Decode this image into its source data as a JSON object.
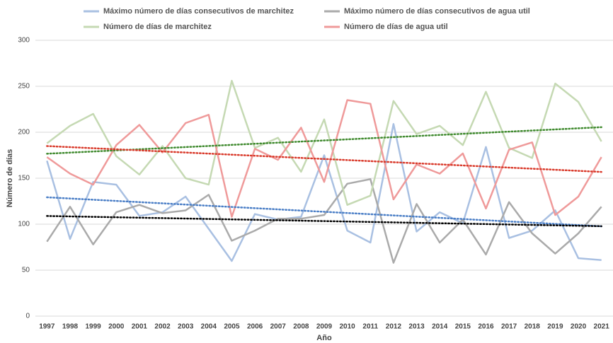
{
  "chart_data": {
    "type": "line",
    "x_label": "Año",
    "y_label": "Número de días",
    "categories": [
      "1997",
      "1998",
      "1999",
      "2000",
      "2001",
      "2002",
      "2003",
      "2004",
      "2005",
      "2006",
      "2007",
      "2008",
      "2009",
      "2010",
      "2011",
      "2012",
      "2013",
      "2014",
      "2015",
      "2016",
      "2017",
      "2018",
      "2019",
      "2020",
      "2021"
    ],
    "ylim": [
      0,
      300
    ],
    "yticks": [
      0,
      50,
      100,
      150,
      200,
      250,
      300
    ],
    "grid": true,
    "legend": "top",
    "series": [
      {
        "name": "Máximo número de días consecutivos de marchitez",
        "color": "#a9c0e2",
        "trendline": true,
        "trend_color": "#4a7ec6",
        "values": [
          169,
          84,
          146,
          143,
          109,
          113,
          130,
          95,
          60,
          111,
          105,
          108,
          175,
          93,
          80,
          209,
          92,
          113,
          101,
          184,
          85,
          93,
          115,
          63,
          61
        ]
      },
      {
        "name": "Máximo número de días consecutivos de agua util",
        "color": "#aaaaaa",
        "trendline": true,
        "trend_color": "#000000",
        "values": [
          81,
          119,
          78,
          113,
          121,
          112,
          115,
          132,
          82,
          93,
          106,
          106,
          110,
          144,
          149,
          58,
          122,
          80,
          105,
          67,
          124,
          90,
          68,
          90,
          119
        ]
      },
      {
        "name": "Número de días de marchitez",
        "color": "#c5d9b3",
        "trendline": true,
        "trend_color": "#3f8a2e",
        "values": [
          188,
          207,
          220,
          174,
          154,
          185,
          150,
          143,
          256,
          183,
          194,
          157,
          214,
          121,
          131,
          234,
          198,
          207,
          186,
          244,
          183,
          172,
          253,
          233,
          190
        ]
      },
      {
        "name": "Número de días de agua util",
        "color": "#ef9a9a",
        "trendline": true,
        "trend_color": "#d93a2b",
        "values": [
          173,
          155,
          143,
          186,
          208,
          178,
          210,
          219,
          108,
          182,
          170,
          205,
          146,
          235,
          231,
          127,
          165,
          155,
          177,
          117,
          181,
          189,
          110,
          130,
          173
        ]
      }
    ]
  }
}
